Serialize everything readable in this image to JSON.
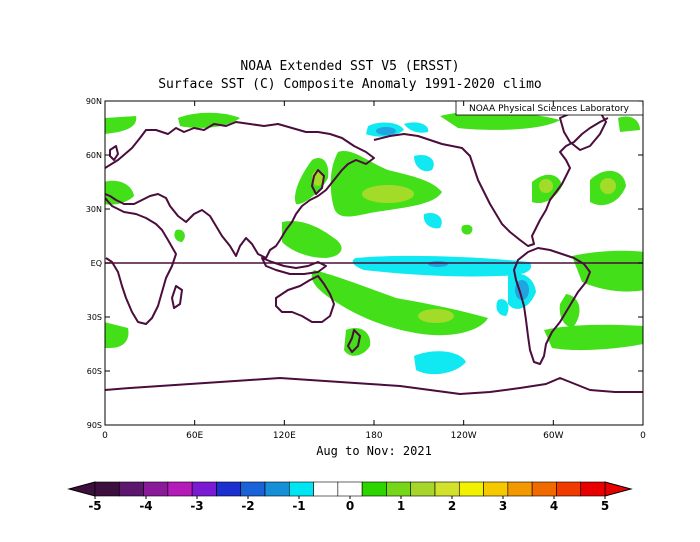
{
  "titles": {
    "line1": "NOAA Extended SST V5 (ERSST)",
    "line2": "Surface SST (C) Composite Anomaly 1991-2020 climo",
    "credit": "NOAA Physical Sciences Laboratory",
    "period": "Aug to Nov: 2021"
  },
  "map": {
    "lon_range": [
      0,
      360
    ],
    "lat_range": [
      -90,
      90
    ],
    "x_ticks": [
      {
        "lon": 0,
        "label": "0"
      },
      {
        "lon": 60,
        "label": "60E"
      },
      {
        "lon": 120,
        "label": "120E"
      },
      {
        "lon": 180,
        "label": "180"
      },
      {
        "lon": 240,
        "label": "120W"
      },
      {
        "lon": 300,
        "label": "60W"
      },
      {
        "lon": 360,
        "label": "0"
      }
    ],
    "y_ticks": [
      {
        "lat": 90,
        "label": "90N"
      },
      {
        "lat": 60,
        "label": "60N"
      },
      {
        "lat": 30,
        "label": "30N"
      },
      {
        "lat": 0,
        "label": "EQ"
      },
      {
        "lat": -30,
        "label": "30S"
      },
      {
        "lat": -60,
        "label": "60S"
      },
      {
        "lat": -90,
        "label": "90S"
      }
    ],
    "equator_line": true,
    "coastline_color": "#4a0d3c"
  },
  "colorbar": {
    "labels": [
      "-5",
      "-4",
      "-3",
      "-2",
      "-1",
      "0",
      "1",
      "2",
      "3",
      "4",
      "5"
    ],
    "bins": [
      "#3c0f3c",
      "#5c176e",
      "#8a1a9a",
      "#b41bb8",
      "#7a1ad2",
      "#1e2fcf",
      "#1a62d8",
      "#178fd6",
      "#00e5f2",
      "#ffffff",
      "#ffffff",
      "#2ed400",
      "#76d61a",
      "#a6d62c",
      "#d2e22c",
      "#f2f200",
      "#f5c800",
      "#f29800",
      "#f06a00",
      "#ef3a00",
      "#e80000"
    ]
  },
  "anomaly_colors": {
    "light_green": "#43e01a",
    "yellow_green": "#a2dc28",
    "cyan": "#11e9f2",
    "light_blue": "#21a4df"
  }
}
